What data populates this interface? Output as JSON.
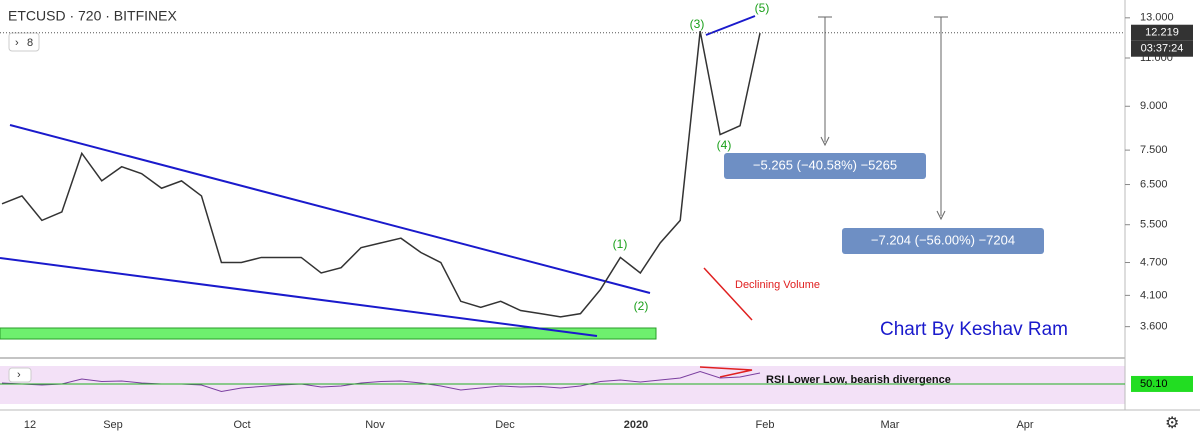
{
  "header": {
    "symbol": "ETCUSD · 720 · BITFINEX",
    "indicator_toggle": "8"
  },
  "price_axis": {
    "scale": "log",
    "ylim": [
      3.16,
      14.0
    ],
    "ticks": [
      {
        "value": 13,
        "label": "13.000"
      },
      {
        "value": 11,
        "label": "11.000"
      },
      {
        "value": 9,
        "label": "9.000"
      },
      {
        "value": 7.5,
        "label": "7.500"
      },
      {
        "value": 6.5,
        "label": "6.500"
      },
      {
        "value": 5.5,
        "label": "5.500"
      },
      {
        "value": 4.7,
        "label": "4.700"
      },
      {
        "value": 4.1,
        "label": "4.100"
      },
      {
        "value": 3.6,
        "label": "3.600"
      }
    ],
    "last_price": 12.219,
    "countdown": "03:37:24"
  },
  "time_axis": {
    "labels": [
      "12",
      "Sep",
      "Oct",
      "Nov",
      "Dec",
      "2020",
      "Feb",
      "Mar",
      "Apr"
    ]
  },
  "price_series": {
    "color": "#333333",
    "values": [
      6.0,
      6.2,
      5.6,
      5.8,
      7.4,
      6.6,
      7.0,
      6.8,
      6.4,
      6.6,
      6.2,
      4.7,
      4.7,
      4.8,
      4.8,
      4.8,
      4.5,
      4.6,
      5.0,
      5.1,
      5.2,
      4.9,
      4.7,
      4.0,
      3.9,
      4.0,
      3.85,
      3.8,
      3.75,
      3.8,
      4.2,
      4.8,
      4.5,
      5.1,
      5.6,
      12.3,
      8.0,
      8.3,
      12.2
    ]
  },
  "rsi": {
    "color": "#7b3fa0",
    "ylim": [
      0,
      100
    ],
    "level": {
      "value": 50.1,
      "label": "50.10"
    },
    "values": [
      52,
      50,
      48,
      50,
      60,
      55,
      56,
      52,
      50,
      50,
      48,
      35,
      42,
      45,
      48,
      50,
      44,
      46,
      52,
      55,
      56,
      52,
      46,
      38,
      42,
      46,
      44,
      45,
      42,
      46,
      55,
      58,
      54,
      58,
      62,
      75,
      62,
      64,
      72
    ],
    "note": "RSI Lower Low, bearish divergence"
  },
  "annotations": {
    "waves": [
      "(1)",
      "(2)",
      "(3)",
      "(4)",
      "(5)"
    ],
    "volume_note": "Declining Volume",
    "target1": "−5.265 (−40.58%) −5265",
    "target2": "−7.204 (−56.00%) −7204",
    "credit": "Chart By Keshav Ram"
  }
}
